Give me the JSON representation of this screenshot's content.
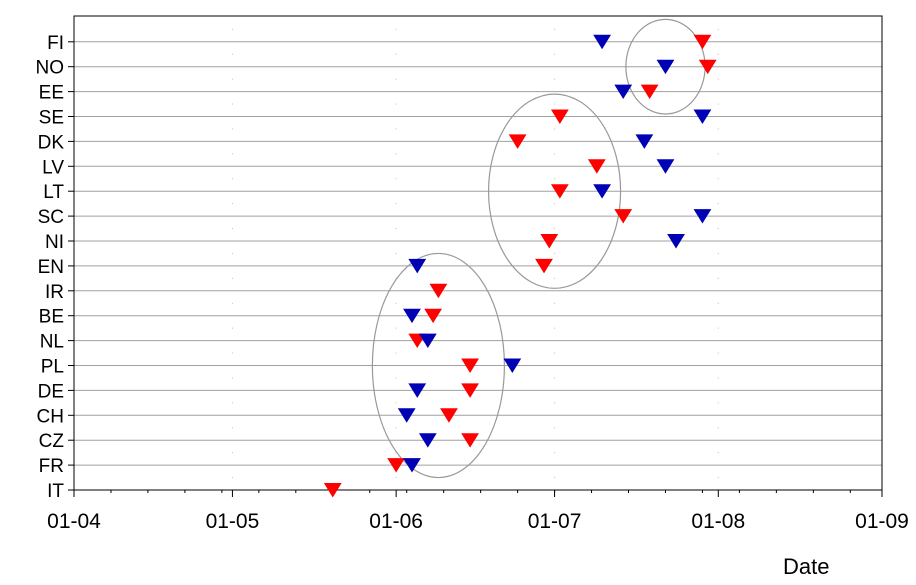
{
  "chart_data": {
    "type": "scatter",
    "xlabel": "Date",
    "ylabel": "",
    "x_ticks": [
      "01-04",
      "01-05",
      "01-06",
      "01-07",
      "01-08",
      "01-09"
    ],
    "x_tick_dates": [
      "2000-04-01",
      "2000-05-01",
      "2000-06-01",
      "2000-07-01",
      "2000-08-01",
      "2000-09-01"
    ],
    "xlim": [
      "2000-04-01",
      "2000-09-01"
    ],
    "categories": [
      "FI",
      "NO",
      "EE",
      "SE",
      "DK",
      "LV",
      "LT",
      "SC",
      "NI",
      "EN",
      "IR",
      "BE",
      "NL",
      "PL",
      "DE",
      "CH",
      "CZ",
      "FR",
      "IT"
    ],
    "grid": true,
    "legend": "none",
    "marker": "down-triangle",
    "series": [
      {
        "color": "#ff0000",
        "points": [
          [
            "FI",
            "2000-07-29"
          ],
          [
            "NO",
            "2000-07-30"
          ],
          [
            "EE",
            "2000-07-19"
          ],
          [
            "SE",
            "2000-07-02"
          ],
          [
            "DK",
            "2000-06-24"
          ],
          [
            "LV",
            "2000-07-09"
          ],
          [
            "LT",
            "2000-07-02"
          ],
          [
            "SC",
            "2000-07-14"
          ],
          [
            "NI",
            "2000-06-30"
          ],
          [
            "EN",
            "2000-06-29"
          ],
          [
            "IR",
            "2000-06-09"
          ],
          [
            "BE",
            "2000-06-08"
          ],
          [
            "NL",
            "2000-06-05"
          ],
          [
            "PL",
            "2000-06-15"
          ],
          [
            "DE",
            "2000-06-15"
          ],
          [
            "CH",
            "2000-06-11"
          ],
          [
            "CZ",
            "2000-06-15"
          ],
          [
            "FR",
            "2000-06-01"
          ],
          [
            "IT",
            "2000-05-20"
          ]
        ]
      },
      {
        "color": "#0000b4",
        "points": [
          [
            "FI",
            "2000-07-10"
          ],
          [
            "NO",
            "2000-07-22"
          ],
          [
            "EE",
            "2000-07-14"
          ],
          [
            "SE",
            "2000-07-29"
          ],
          [
            "DK",
            "2000-07-18"
          ],
          [
            "LV",
            "2000-07-22"
          ],
          [
            "LT",
            "2000-07-10"
          ],
          [
            "SC",
            "2000-07-29"
          ],
          [
            "NI",
            "2000-07-24"
          ],
          [
            "EN",
            "2000-06-05"
          ],
          [
            "BE",
            "2000-06-04"
          ],
          [
            "NL",
            "2000-06-07"
          ],
          [
            "PL",
            "2000-06-23"
          ],
          [
            "DE",
            "2000-06-05"
          ],
          [
            "CH",
            "2000-06-03"
          ],
          [
            "CZ",
            "2000-06-07"
          ],
          [
            "FR",
            "2000-06-04"
          ]
        ]
      }
    ],
    "annotations": [
      {
        "type": "ellipse",
        "stroke": "#999999",
        "center": [
          "2000-07-22",
          "NO"
        ],
        "x_half_width_days": 7.5,
        "y_half_height_rows": 1.9
      },
      {
        "type": "ellipse",
        "stroke": "#999999",
        "center": [
          "2000-07-01",
          "LT"
        ],
        "x_half_width_days": 12.5,
        "y_half_height_rows": 3.9
      },
      {
        "type": "ellipse",
        "stroke": "#999999",
        "center": [
          "2000-06-09",
          "PL"
        ],
        "x_half_width_days": 12.5,
        "y_half_height_rows": 4.5
      }
    ]
  }
}
